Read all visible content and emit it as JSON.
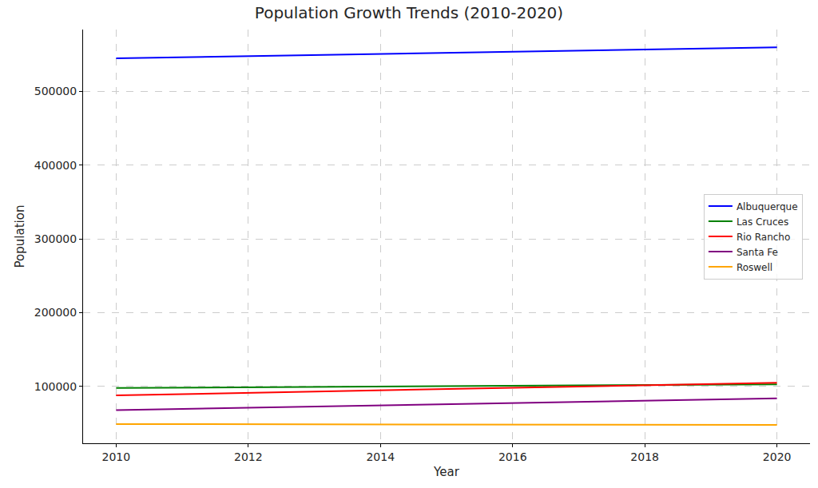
{
  "chart_data": {
    "type": "line",
    "title": "Population Growth Trends (2010-2020)",
    "x_label": "Year",
    "y_label": "Population",
    "x": [
      2010,
      2011,
      2012,
      2013,
      2014,
      2015,
      2016,
      2017,
      2018,
      2019,
      2020
    ],
    "series": [
      {
        "name": "Albuquerque",
        "color": "#0000ff",
        "values": [
          545000,
          546500,
          548000,
          549500,
          551000,
          552500,
          554000,
          555500,
          557000,
          558500,
          560000
        ]
      },
      {
        "name": "Las Cruces",
        "color": "#008000",
        "values": [
          98000,
          98500,
          99000,
          99500,
          100000,
          100500,
          101000,
          101500,
          102000,
          102500,
          103000
        ]
      },
      {
        "name": "Rio Rancho",
        "color": "#ff0000",
        "values": [
          88000,
          89700,
          91400,
          93100,
          94800,
          96500,
          98200,
          99900,
          101600,
          103300,
          105000
        ]
      },
      {
        "name": "Santa Fe",
        "color": "#800080",
        "values": [
          68000,
          69600,
          71200,
          72800,
          74400,
          76000,
          77600,
          79200,
          80800,
          82400,
          84000
        ]
      },
      {
        "name": "Roswell",
        "color": "#ffa500",
        "values": [
          49000,
          48900,
          48800,
          48700,
          48600,
          48500,
          48400,
          48300,
          48200,
          48100,
          48000
        ]
      }
    ],
    "xlim": [
      2009.5,
      2020.5
    ],
    "xticks": [
      2010,
      2012,
      2014,
      2016,
      2018,
      2020
    ],
    "ylim": [
      23000,
      584000
    ],
    "yticks": [
      100000,
      200000,
      300000,
      400000,
      500000
    ],
    "grid": true,
    "legend": "center right"
  }
}
